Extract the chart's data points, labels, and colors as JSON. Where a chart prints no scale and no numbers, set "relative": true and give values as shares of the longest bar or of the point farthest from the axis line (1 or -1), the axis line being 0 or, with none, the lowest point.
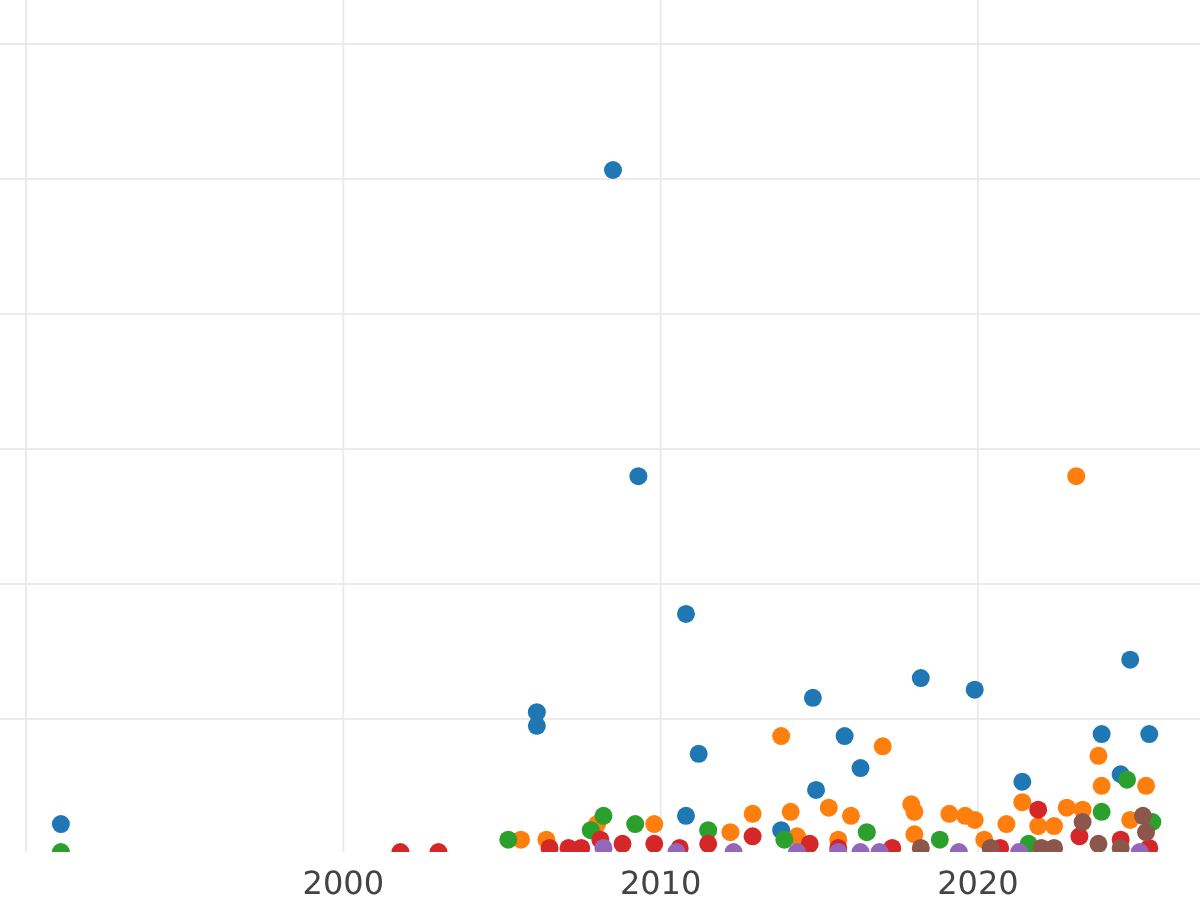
{
  "chart_data": {
    "type": "scatter",
    "relative": true,
    "grid": true,
    "marker": "circle",
    "xlim": [
      1990,
      2027
    ],
    "xticks": [
      {
        "value": 1990,
        "label": null
      },
      2000,
      2010,
      2020
    ],
    "tick_labels": "x",
    "series": [
      {
        "color": "#1f77b4",
        "x": [
          1991.1,
          2008.5,
          2009.3,
          2010.8,
          2006.1,
          2006.1,
          2011.2,
          2010.8,
          2014.8,
          2014.9,
          2015.8,
          2016.3,
          2018.2,
          2019.9,
          2021.4,
          2023.9,
          2024.8,
          2025.4,
          2024.5,
          2013.8
        ],
        "values": [
          0.041,
          1.0,
          0.551,
          0.349,
          0.205,
          0.185,
          0.144,
          0.053,
          0.226,
          0.091,
          0.17,
          0.123,
          0.255,
          0.238,
          0.103,
          0.173,
          0.282,
          0.173,
          0.114,
          0.032
        ]
      },
      {
        "color": "#ff7f0e",
        "x": [
          2023.1,
          2017.0,
          2013.8,
          2023.8,
          2025.3,
          2023.9,
          2017.9,
          2018.0,
          2021.4,
          2022.8,
          2023.3,
          2015.3,
          2016.0,
          2014.1,
          2012.9,
          2009.8,
          2019.1,
          2019.6,
          2019.9,
          2020.9,
          2021.9,
          2005.6,
          2006.4,
          2008.0,
          2012.2,
          2014.3,
          2018.0,
          2022.4,
          2024.8,
          2020.2,
          2015.6
        ],
        "values": [
          0.551,
          0.155,
          0.17,
          0.141,
          0.097,
          0.097,
          0.07,
          0.059,
          0.073,
          0.065,
          0.062,
          0.065,
          0.053,
          0.059,
          0.056,
          0.041,
          0.056,
          0.053,
          0.047,
          0.041,
          0.038,
          0.018,
          0.018,
          0.041,
          0.029,
          0.023,
          0.026,
          0.038,
          0.047,
          0.018,
          0.018
        ]
      },
      {
        "color": "#2ca02c",
        "x": [
          1991.1,
          2005.2,
          2008.2,
          2007.8,
          2009.2,
          2011.5,
          2013.9,
          2016.5,
          2023.9,
          2024.7,
          2025.5,
          2018.8,
          2021.6
        ],
        "values": [
          0,
          0.018,
          0.053,
          0.032,
          0.041,
          0.032,
          0.018,
          0.029,
          0.059,
          0.106,
          0.044,
          0.018,
          0.012
        ]
      },
      {
        "color": "#d62728",
        "x": [
          2001.8,
          2003.0,
          2006.5,
          2007.1,
          2007.5,
          2008.1,
          2008.8,
          2009.8,
          2011.5,
          2012.9,
          2014.7,
          2015.6,
          2017.3,
          2021.9,
          2023.2,
          2024.5,
          2020.7,
          2025.4,
          2010.6
        ],
        "values": [
          0,
          0,
          0.006,
          0.006,
          0.006,
          0.018,
          0.012,
          0.012,
          0.012,
          0.023,
          0.012,
          0.006,
          0.006,
          0.062,
          0.023,
          0.018,
          0.006,
          0.006,
          0.006
        ]
      },
      {
        "color": "#9467bd",
        "x": [
          2008.2,
          2010.5,
          2012.3,
          2014.3,
          2015.6,
          2016.3,
          2016.9,
          2019.4,
          2021.3,
          2025.1
        ],
        "values": [
          0.006,
          0,
          0,
          0,
          0,
          0,
          0,
          0,
          0,
          0
        ]
      },
      {
        "color": "#8c564b",
        "x": [
          2018.2,
          2020.4,
          2022.0,
          2023.3,
          2023.8,
          2025.2,
          2025.3,
          2024.5,
          2022.4
        ],
        "values": [
          0.006,
          0.006,
          0.006,
          0.044,
          0.012,
          0.053,
          0.029,
          0.006,
          0.006
        ]
      }
    ]
  }
}
